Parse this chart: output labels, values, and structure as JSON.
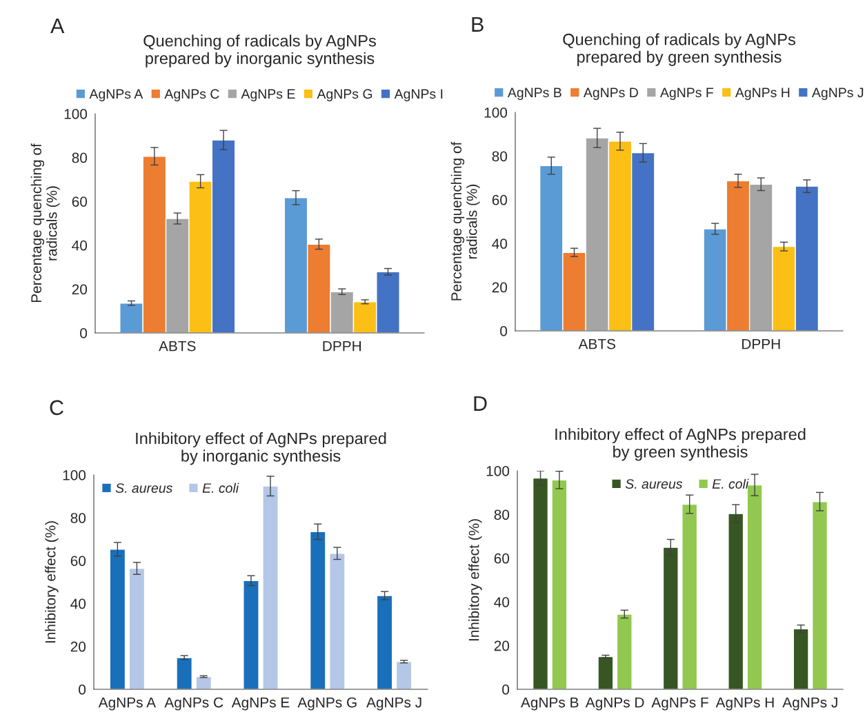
{
  "chart_data": [
    {
      "type": "bar",
      "title": "Quenching of radicals by AgNPs\nprepared by inorganic synthesis",
      "ylabel": "Percentage quenching of\nradicals (%)",
      "annotations": [
        "A"
      ],
      "categories": [
        "ABTS",
        "DPPH"
      ],
      "ylim": [
        0,
        100
      ],
      "yticks": [
        0,
        20,
        40,
        60,
        80,
        100
      ],
      "grid": false,
      "legend": "top",
      "series": [
        {
          "name": "AgNPs A",
          "color": "#5b9bd5",
          "values": [
            13.6,
            61.7
          ],
          "errors": [
            1.0,
            3.2
          ]
        },
        {
          "name": "AgNPs C",
          "color": "#ed7d31",
          "values": [
            80.6,
            40.5
          ],
          "errors": [
            4.0,
            2.3
          ]
        },
        {
          "name": "AgNPs E",
          "color": "#a5a5a5",
          "values": [
            52.2,
            18.8
          ],
          "errors": [
            2.5,
            1.3
          ]
        },
        {
          "name": "AgNPs G",
          "color": "#fbbf15",
          "values": [
            69.2,
            14.2
          ],
          "errors": [
            3.0,
            0.9
          ]
        },
        {
          "name": "AgNPs I",
          "color": "#4472c4",
          "values": [
            88.0,
            27.9
          ],
          "errors": [
            4.4,
            1.5
          ]
        }
      ]
    },
    {
      "type": "bar",
      "title": "Quenching of radicals by AgNPs\nprepared by green synthesis",
      "ylabel": "Percentage quenching of\nradicals (%)",
      "annotations": [
        "B"
      ],
      "categories": [
        "ABTS",
        "DPPH"
      ],
      "ylim": [
        0,
        100
      ],
      "yticks": [
        0,
        20,
        40,
        60,
        80,
        100
      ],
      "grid": false,
      "legend": "top",
      "series": [
        {
          "name": "AgNPs B",
          "color": "#5b9bd5",
          "values": [
            75.6,
            46.7
          ],
          "errors": [
            3.9,
            2.5
          ]
        },
        {
          "name": "AgNPs D",
          "color": "#ed7d31",
          "values": [
            35.9,
            68.7
          ],
          "errors": [
            1.9,
            3.0
          ]
        },
        {
          "name": "AgNPs F",
          "color": "#a5a5a5",
          "values": [
            88.3,
            67.1
          ],
          "errors": [
            4.4,
            2.9
          ]
        },
        {
          "name": "AgNPs H",
          "color": "#fbbf15",
          "values": [
            86.8,
            38.6
          ],
          "errors": [
            4.1,
            2.0
          ]
        },
        {
          "name": "AgNPs J",
          "color": "#4472c4",
          "values": [
            81.5,
            66.2
          ],
          "errors": [
            4.2,
            2.9
          ]
        }
      ]
    },
    {
      "type": "bar",
      "title": "Inhibitory effect of AgNPs prepared\nby inorganic synthesis",
      "ylabel": "Inhibitory effect (%)",
      "annotations": [
        "C"
      ],
      "categories": [
        "AgNPs A",
        "AgNPs C",
        "AgNPs E",
        "AgNPs G",
        "AgNPs J"
      ],
      "ylim": [
        0,
        100
      ],
      "yticks": [
        0,
        20,
        40,
        60,
        80,
        100
      ],
      "grid": false,
      "legend": "top left",
      "series": [
        {
          "name": "S. aureus",
          "color": "#1a6fba",
          "values": [
            65.3,
            14.8,
            50.7,
            73.5,
            43.7
          ],
          "errors": [
            3.2,
            0.9,
            2.3,
            3.6,
            1.9
          ]
        },
        {
          "name": "E. coli",
          "color": "#b4c7e7",
          "values": [
            56.4,
            5.9,
            94.8,
            63.4,
            12.9
          ],
          "errors": [
            2.8,
            0.4,
            4.6,
            2.8,
            0.6
          ]
        }
      ]
    },
    {
      "type": "bar",
      "title": "Inhibitory effect of AgNPs prepared\nby green synthesis",
      "ylabel": "Inhibitory effect (%)",
      "annotations": [
        "D"
      ],
      "categories": [
        "AgNPs B",
        "AgNPs D",
        "AgNPs F",
        "AgNPs H",
        "AgNPs J"
      ],
      "ylim": [
        0,
        100
      ],
      "yticks": [
        0,
        20,
        40,
        60,
        80,
        100
      ],
      "grid": false,
      "legend": "top center",
      "series": [
        {
          "name": "S. aureus",
          "color": "#375623",
          "values": [
            96.7,
            15.0,
            65.0,
            80.4,
            27.7
          ],
          "errors": [
            3.3,
            0.6,
            3.6,
            4.1,
            1.7
          ]
        },
        {
          "name": "E. coli",
          "color": "#92c84f",
          "values": [
            95.8,
            34.4,
            84.7,
            93.5,
            85.9
          ],
          "errors": [
            4.0,
            1.8,
            4.2,
            4.9,
            4.2
          ]
        }
      ]
    }
  ]
}
